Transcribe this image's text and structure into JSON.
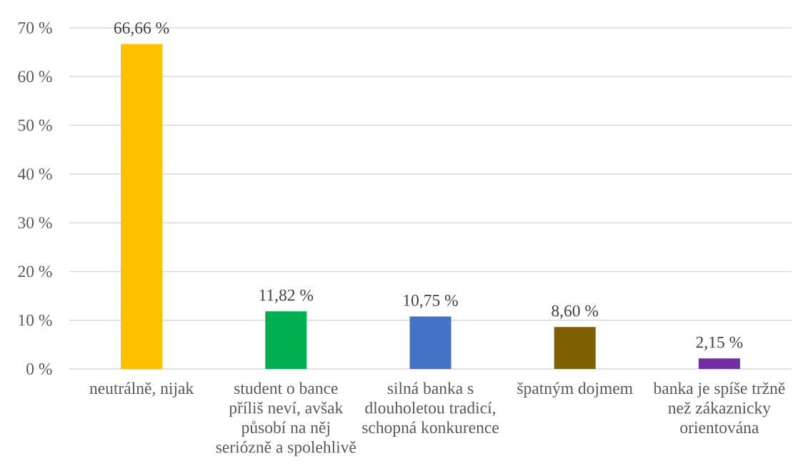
{
  "chart_data": {
    "type": "bar",
    "categories": [
      "neutrálně, nijak",
      "student o bance příliš neví, avšak působí na něj seriózně a spolehlivě",
      "silná banka s dlouholetou tradicí, schopná konkurence",
      "špatným dojmem",
      "banka je spíše tržně než zákaznicky orientována"
    ],
    "values": [
      66.66,
      11.82,
      10.75,
      8.6,
      2.15
    ],
    "colors": [
      "#ffc000",
      "#00b050",
      "#4472c4",
      "#7f6000",
      "#7030a0"
    ],
    "value_labels": [
      "66,66 %",
      "11,82 %",
      "10,75 %",
      "8,60 %",
      "2,15 %"
    ],
    "ylim": [
      0,
      70
    ],
    "yticks": [
      {
        "value": 0,
        "label": "0 %"
      },
      {
        "value": 10,
        "label": "10 %"
      },
      {
        "value": 20,
        "label": "20 %"
      },
      {
        "value": 30,
        "label": "30 %"
      },
      {
        "value": 40,
        "label": "40 %"
      },
      {
        "value": 50,
        "label": "50 %"
      },
      {
        "value": 60,
        "label": "60 %"
      },
      {
        "value": 70,
        "label": "70 %"
      }
    ],
    "grid": "y"
  }
}
